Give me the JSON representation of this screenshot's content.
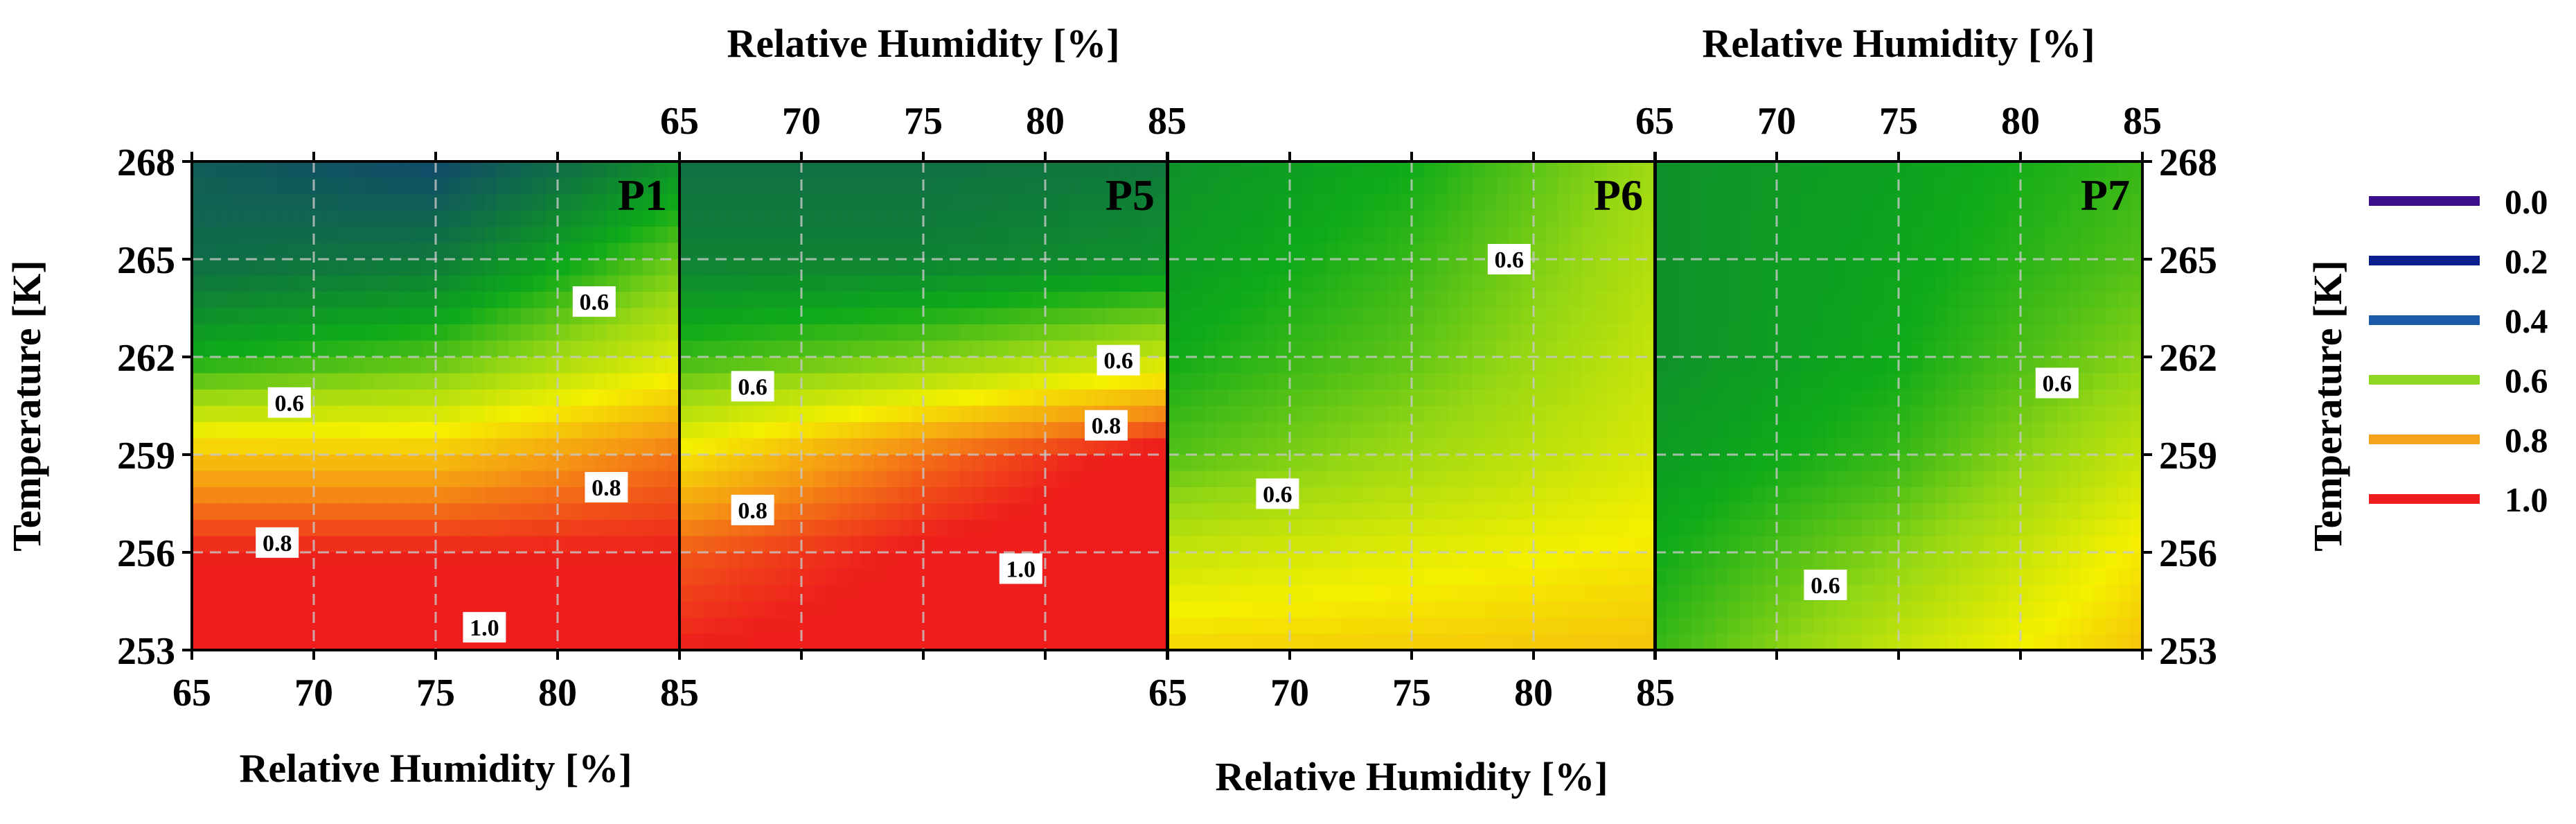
{
  "chart_data": {
    "type": "heatmap",
    "x_title": "Relative Humidity [%]",
    "y_title": "Temperature [K]",
    "x_ticks": [
      65,
      70,
      75,
      80,
      85
    ],
    "y_ticks": [
      253,
      256,
      259,
      262,
      265,
      268
    ],
    "xlim": [
      65,
      85
    ],
    "ylim": [
      253,
      268
    ],
    "grid": true,
    "legend_position": "right",
    "legend": [
      {
        "label": "0.0",
        "color": "#3b0f8c"
      },
      {
        "label": "0.2",
        "color": "#0a1f8f"
      },
      {
        "label": "0.4",
        "color": "#1a5aa8"
      },
      {
        "label": "0.6",
        "color": "#8ed61f"
      },
      {
        "label": "0.8",
        "color": "#f5a21c"
      },
      {
        "label": "1.0",
        "color": "#ee1c1c"
      }
    ],
    "panels": [
      {
        "name": "P1",
        "value_grid": {
          "rh": [
            65,
            75,
            85
          ],
          "temperature": [
            253,
            256,
            259,
            262,
            265,
            268
          ],
          "values": [
            [
              1.0,
              1.0,
              1.0
            ],
            [
              0.95,
              0.95,
              0.95
            ],
            [
              0.8,
              0.8,
              0.88
            ],
            [
              0.55,
              0.6,
              0.72
            ],
            [
              0.42,
              0.45,
              0.62
            ],
            [
              0.38,
              0.33,
              0.5
            ]
          ]
        },
        "contour_labels": [
          {
            "text": "1.0",
            "rh": 77,
            "t": 253.7
          },
          {
            "text": "0.8",
            "rh": 68.5,
            "t": 256.3
          },
          {
            "text": "0.8",
            "rh": 82,
            "t": 258
          },
          {
            "text": "0.6",
            "rh": 69,
            "t": 260.6
          },
          {
            "text": "0.6",
            "rh": 81.5,
            "t": 263.7
          }
        ]
      },
      {
        "name": "P5",
        "value_grid": {
          "rh": [
            65,
            75,
            85
          ],
          "temperature": [
            253,
            256,
            259,
            262,
            265,
            268
          ],
          "values": [
            [
              0.95,
              0.98,
              1.0
            ],
            [
              0.9,
              0.96,
              1.0
            ],
            [
              0.76,
              0.88,
              0.98
            ],
            [
              0.58,
              0.63,
              0.7
            ],
            [
              0.47,
              0.47,
              0.5
            ],
            [
              0.43,
              0.43,
              0.45
            ]
          ]
        },
        "contour_labels": [
          {
            "text": "0.8",
            "rh": 68,
            "t": 257.3
          },
          {
            "text": "1.0",
            "rh": 79,
            "t": 255.5
          },
          {
            "text": "0.8",
            "rh": 82.5,
            "t": 259.9
          },
          {
            "text": "0.6",
            "rh": 68,
            "t": 261.1
          },
          {
            "text": "0.6",
            "rh": 83,
            "t": 261.9
          }
        ]
      },
      {
        "name": "P6",
        "value_grid": {
          "rh": [
            65,
            75,
            85
          ],
          "temperature": [
            253,
            256,
            259,
            262,
            265,
            268
          ],
          "values": [
            [
              0.78,
              0.79,
              0.8
            ],
            [
              0.7,
              0.73,
              0.76
            ],
            [
              0.6,
              0.66,
              0.72
            ],
            [
              0.55,
              0.61,
              0.7
            ],
            [
              0.52,
              0.58,
              0.68
            ],
            [
              0.5,
              0.55,
              0.66
            ]
          ]
        },
        "contour_labels": [
          {
            "text": "0.6",
            "rh": 69.5,
            "t": 257.8
          },
          {
            "text": "0.6",
            "rh": 79,
            "t": 265
          }
        ]
      },
      {
        "name": "P7",
        "value_grid": {
          "rh": [
            65,
            75,
            85
          ],
          "temperature": [
            253,
            256,
            259,
            262,
            265,
            268
          ],
          "values": [
            [
              0.58,
              0.7,
              0.8
            ],
            [
              0.55,
              0.64,
              0.76
            ],
            [
              0.52,
              0.58,
              0.7
            ],
            [
              0.5,
              0.55,
              0.64
            ],
            [
              0.5,
              0.54,
              0.6
            ],
            [
              0.5,
              0.53,
              0.58
            ]
          ]
        },
        "contour_labels": [
          {
            "text": "0.6",
            "rh": 72,
            "t": 255
          },
          {
            "text": "0.6",
            "rh": 81.5,
            "t": 261.2
          }
        ]
      }
    ]
  }
}
